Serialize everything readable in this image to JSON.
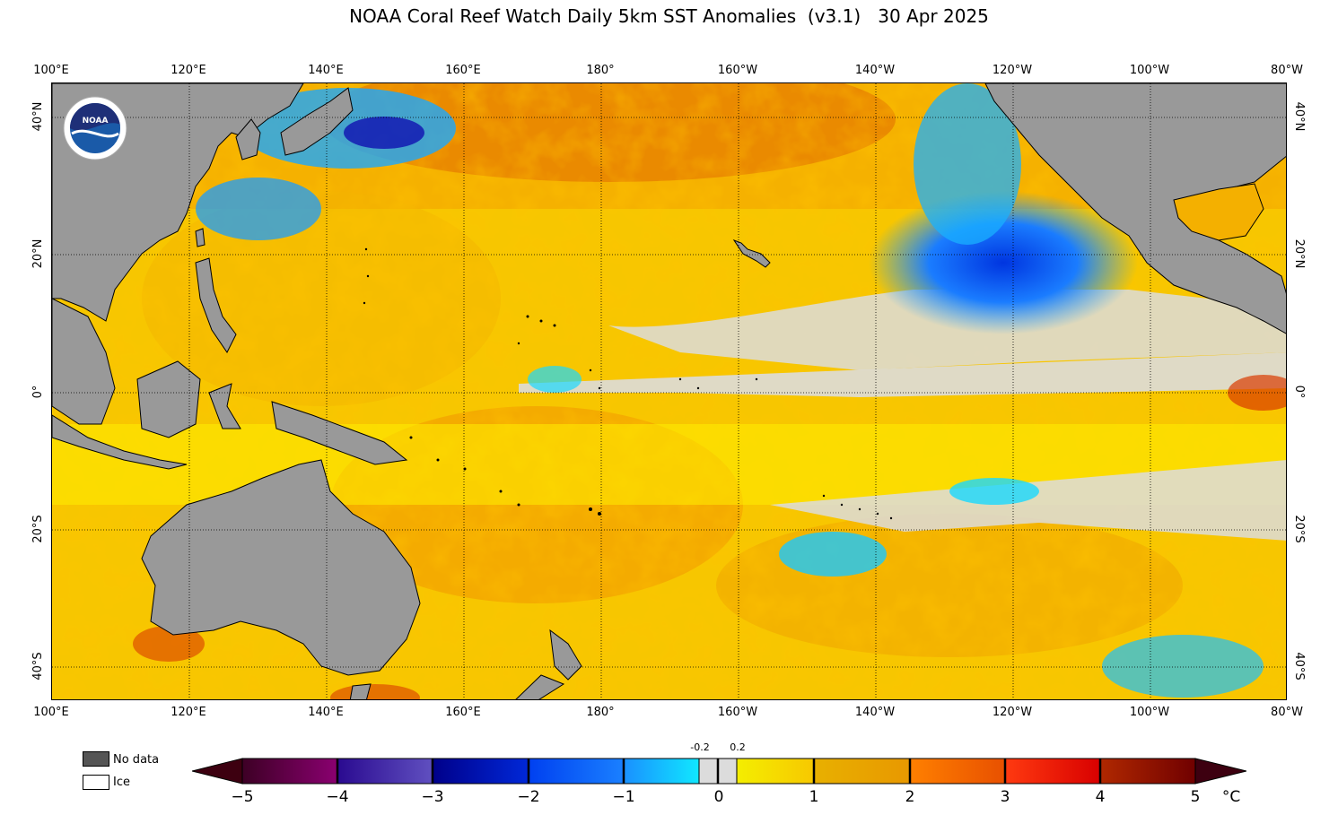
{
  "title": "NOAA Coral Reef Watch Daily 5km SST Anomalies  (v3.1)   30 Apr 2025",
  "lon_ticks": [
    "100°E",
    "120°E",
    "140°E",
    "160°E",
    "180°",
    "160°W",
    "140°W",
    "120°W",
    "100°W",
    "80°W"
  ],
  "lat_ticks_left": [
    "40°N",
    "20°N",
    "0°",
    "20°S",
    "40°S"
  ],
  "lat_ticks_right": [
    "40°N",
    "20°N",
    "0°",
    "20°S",
    "40°S"
  ],
  "legend": {
    "no_data": "No data",
    "ice": "Ice",
    "no_data_color": "#555555",
    "ice_color": "#ffffff",
    "land_color": "#999999"
  },
  "colorbar": {
    "labels": [
      "−5",
      "−4",
      "−3",
      "−2",
      "−1",
      "0",
      "1",
      "2",
      "3",
      "4",
      "5"
    ],
    "small_labels": [
      "-0.2",
      "0.2"
    ],
    "unit": "°C"
  },
  "logo_text": "NOAA"
}
